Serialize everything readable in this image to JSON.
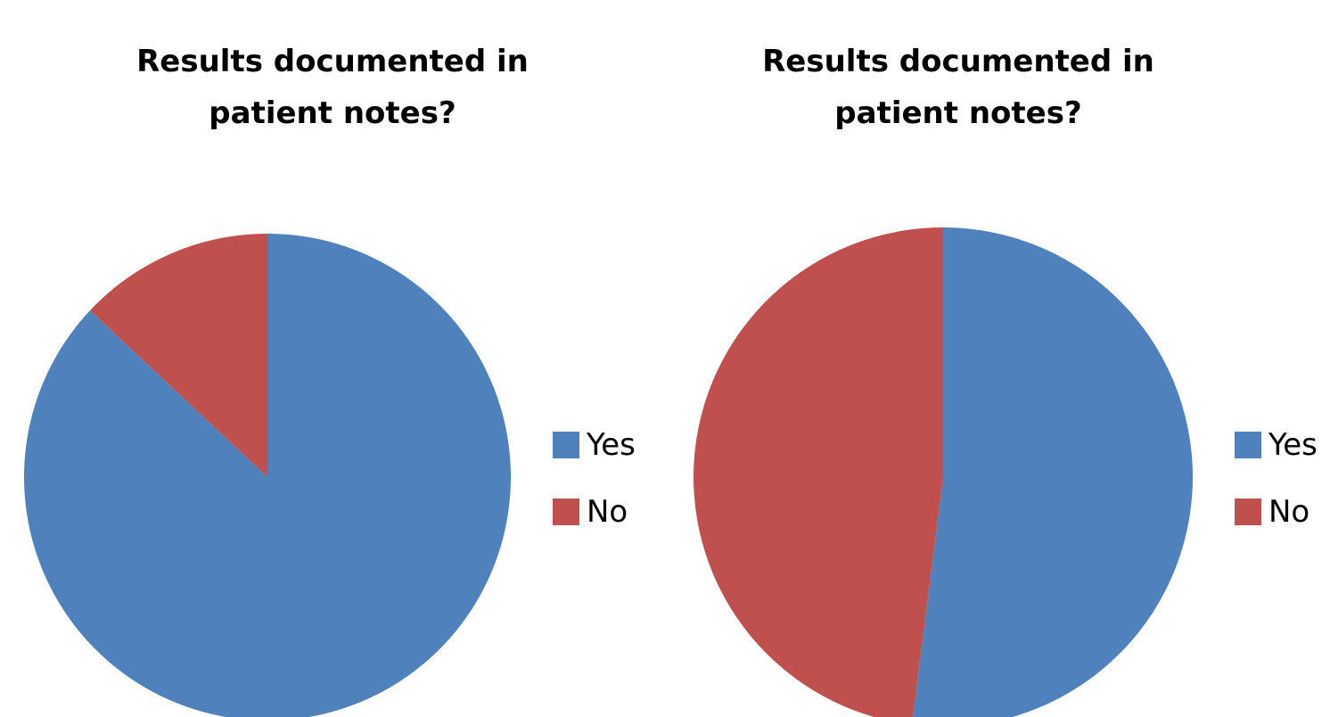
{
  "chart_data": [
    {
      "type": "pie",
      "title": "Results documented in patient notes?",
      "categories": [
        "Yes",
        "No"
      ],
      "values": [
        87,
        13
      ],
      "colors": [
        "#4f81bd",
        "#c0504d"
      ],
      "legend": "right"
    },
    {
      "type": "pie",
      "title": "Results documented in patient notes?",
      "categories": [
        "Yes",
        "No"
      ],
      "values": [
        52,
        48
      ],
      "colors": [
        "#4f81bd",
        "#c0504d"
      ],
      "legend": "right"
    }
  ]
}
